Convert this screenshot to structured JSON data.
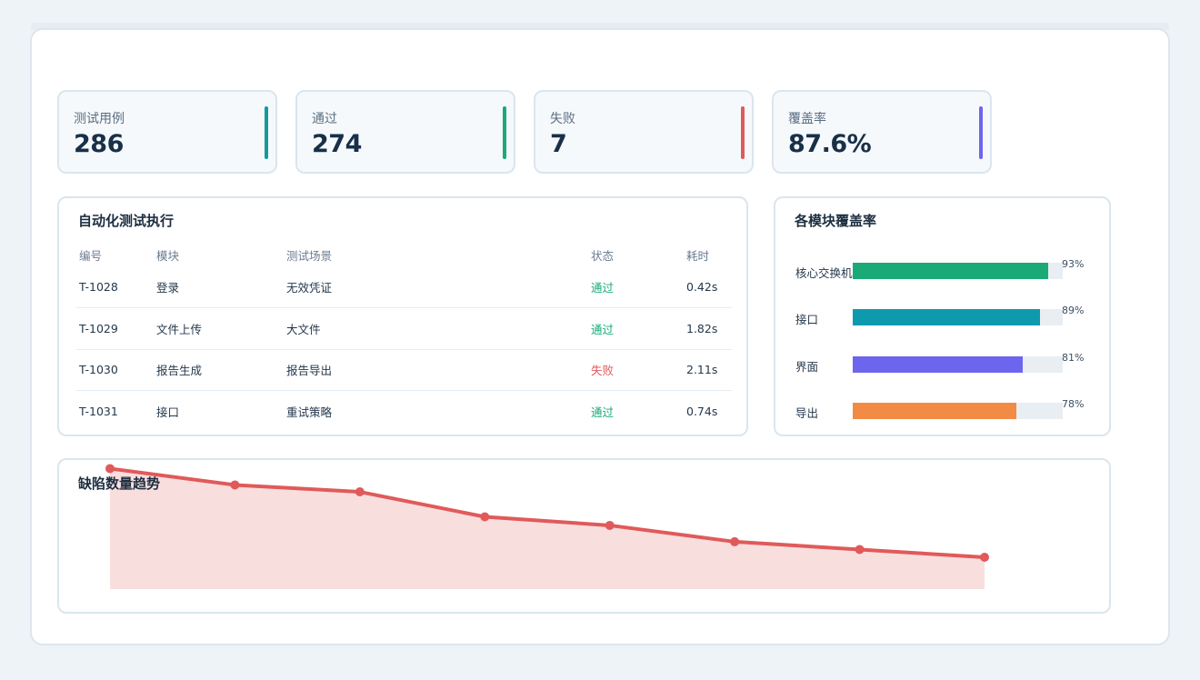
{
  "kpis": [
    {
      "label": "测试用例",
      "value": "286",
      "color": "#15999b"
    },
    {
      "label": "通过",
      "value": "274",
      "color": "#1aaa77"
    },
    {
      "label": "失败",
      "value": "7",
      "color": "#e05a5a"
    },
    {
      "label": "覆盖率",
      "value": "87.6%",
      "color": "#6c66ee"
    }
  ],
  "tests": {
    "title": "自动化测试执行",
    "headers": [
      "编号",
      "模块",
      "测试场景",
      "状态",
      "耗时"
    ],
    "rows": [
      {
        "id": "T-1028",
        "module": "登录",
        "scenario": "无效凭证",
        "status": "通过",
        "status_kind": "pass",
        "time": "0.42s"
      },
      {
        "id": "T-1029",
        "module": "文件上传",
        "scenario": "大文件",
        "status": "通过",
        "status_kind": "pass",
        "time": "1.82s"
      },
      {
        "id": "T-1030",
        "module": "报告生成",
        "scenario": "报告导出",
        "status": "失败",
        "status_kind": "fail",
        "time": "2.11s"
      },
      {
        "id": "T-1031",
        "module": "接口",
        "scenario": "重试策略",
        "status": "通过",
        "status_kind": "pass",
        "time": "0.74s"
      }
    ]
  },
  "coverage": {
    "title": "各模块覆盖率",
    "items": [
      {
        "label": "核心交换机",
        "percent": 93,
        "percent_label": "93%",
        "color": "#1aaa77"
      },
      {
        "label": "接口",
        "percent": 89,
        "percent_label": "89%",
        "color": "#0e9aae"
      },
      {
        "label": "界面",
        "percent": 81,
        "percent_label": "81%",
        "color": "#6c66ee"
      },
      {
        "label": "导出",
        "percent": 78,
        "percent_label": "78%",
        "color": "#f28c44"
      }
    ]
  },
  "chart_data": {
    "type": "area",
    "title": "缺陷数量趋势",
    "x": [
      1,
      2,
      3,
      4,
      5,
      6,
      7,
      8
    ],
    "values": [
      14,
      12.1,
      11.3,
      8.4,
      7.4,
      5.5,
      4.6,
      3.7
    ],
    "ylim": [
      0,
      15
    ],
    "color": "#e05a5a",
    "fill": "#f9dede",
    "grid": false
  }
}
